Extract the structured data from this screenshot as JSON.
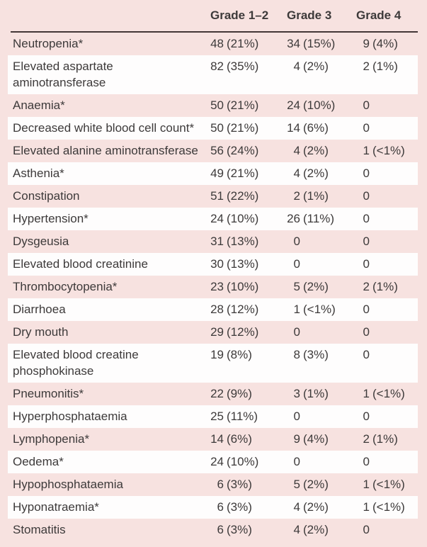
{
  "theme": {
    "page_bg": "#f7e2e0",
    "stripe_white": "#fefdfd",
    "text_color": "#3d3a3a",
    "rule_color": "#443737"
  },
  "table": {
    "columns": [
      "",
      "Grade 1–2",
      "Grade 3",
      "Grade 4"
    ],
    "rows": [
      {
        "label": "Neutropenia*",
        "cells": [
          [
            "48",
            "(21%)"
          ],
          [
            "34",
            "(15%)"
          ],
          [
            "9",
            "(4%)"
          ]
        ]
      },
      {
        "label": "Elevated aspartate\naminotransferase",
        "cells": [
          [
            "82",
            "(35%)"
          ],
          [
            "4",
            "(2%)"
          ],
          [
            "2",
            "(1%)"
          ]
        ]
      },
      {
        "label": "Anaemia*",
        "cells": [
          [
            "50",
            "(21%)"
          ],
          [
            "24",
            "(10%)"
          ],
          [
            "0",
            ""
          ]
        ]
      },
      {
        "label": "Decreased white blood cell count*",
        "cells": [
          [
            "50",
            "(21%)"
          ],
          [
            "14",
            "(6%)"
          ],
          [
            "0",
            ""
          ]
        ]
      },
      {
        "label": "Elevated alanine aminotransferase",
        "cells": [
          [
            "56",
            "(24%)"
          ],
          [
            "4",
            "(2%)"
          ],
          [
            "1",
            "(<1%)"
          ]
        ]
      },
      {
        "label": "Asthenia*",
        "cells": [
          [
            "49",
            "(21%)"
          ],
          [
            "4",
            "(2%)"
          ],
          [
            "0",
            ""
          ]
        ]
      },
      {
        "label": "Constipation",
        "cells": [
          [
            "51",
            "(22%)"
          ],
          [
            "2",
            "(1%)"
          ],
          [
            "0",
            ""
          ]
        ]
      },
      {
        "label": "Hypertension*",
        "cells": [
          [
            "24",
            "(10%)"
          ],
          [
            "26",
            "(11%)"
          ],
          [
            "0",
            ""
          ]
        ]
      },
      {
        "label": "Dysgeusia",
        "cells": [
          [
            "31",
            "(13%)"
          ],
          [
            "0",
            ""
          ],
          [
            "0",
            ""
          ]
        ]
      },
      {
        "label": "Elevated blood creatinine",
        "cells": [
          [
            "30",
            "(13%)"
          ],
          [
            "0",
            ""
          ],
          [
            "0",
            ""
          ]
        ]
      },
      {
        "label": "Thrombocytopenia*",
        "cells": [
          [
            "23",
            "(10%)"
          ],
          [
            "5",
            "(2%)"
          ],
          [
            "2",
            "(1%)"
          ]
        ]
      },
      {
        "label": "Diarrhoea",
        "cells": [
          [
            "28",
            "(12%)"
          ],
          [
            "1",
            "(<1%)"
          ],
          [
            "0",
            ""
          ]
        ]
      },
      {
        "label": "Dry mouth",
        "cells": [
          [
            "29",
            "(12%)"
          ],
          [
            "0",
            ""
          ],
          [
            "0",
            ""
          ]
        ]
      },
      {
        "label": "Elevated blood creatine\nphosphokinase",
        "cells": [
          [
            "19",
            "(8%)"
          ],
          [
            "8",
            "(3%)"
          ],
          [
            "0",
            ""
          ]
        ]
      },
      {
        "label": "Pneumonitis*",
        "cells": [
          [
            "22",
            "(9%)"
          ],
          [
            "3",
            "(1%)"
          ],
          [
            "1",
            "(<1%)"
          ]
        ]
      },
      {
        "label": "Hyperphosphataemia",
        "cells": [
          [
            "25",
            "(11%)"
          ],
          [
            "0",
            ""
          ],
          [
            "0",
            ""
          ]
        ]
      },
      {
        "label": "Lymphopenia*",
        "cells": [
          [
            "14",
            "(6%)"
          ],
          [
            "9",
            "(4%)"
          ],
          [
            "2",
            "(1%)"
          ]
        ]
      },
      {
        "label": "Oedema*",
        "cells": [
          [
            "24",
            "(10%)"
          ],
          [
            "0",
            ""
          ],
          [
            "0",
            ""
          ]
        ]
      },
      {
        "label": "Hypophosphataemia",
        "cells": [
          [
            "6",
            "(3%)"
          ],
          [
            "5",
            "(2%)"
          ],
          [
            "1",
            "(<1%)"
          ]
        ]
      },
      {
        "label": "Hyponatraemia*",
        "cells": [
          [
            "6",
            "(3%)"
          ],
          [
            "4",
            "(2%)"
          ],
          [
            "1",
            "(<1%)"
          ]
        ]
      },
      {
        "label": "Stomatitis",
        "cells": [
          [
            "6",
            "(3%)"
          ],
          [
            "4",
            "(2%)"
          ],
          [
            "0",
            ""
          ]
        ]
      }
    ]
  }
}
